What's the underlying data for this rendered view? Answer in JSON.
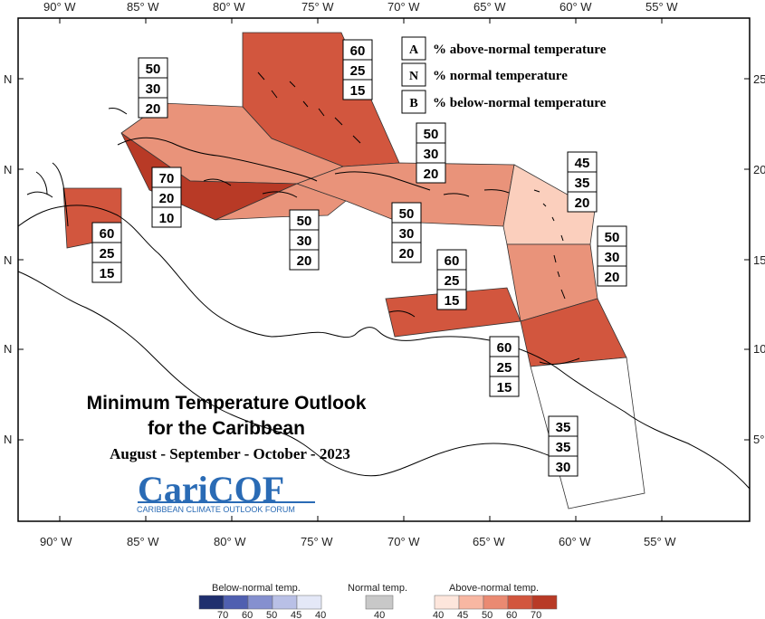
{
  "map": {
    "title_line1": "Minimum Temperature Outlook",
    "title_line2": "for the Caribbean",
    "period": "August - September - October - 2023",
    "lon_labels": [
      "90° W",
      "85° W",
      "80° W",
      "75° W",
      "70° W",
      "65° W",
      "60° W",
      "55° W"
    ],
    "lat_labels_left": [
      "N",
      "N",
      "N",
      "N",
      "N"
    ],
    "lat_labels_right": [
      "25",
      "20",
      "15",
      "10",
      "5°"
    ]
  },
  "key": {
    "a_letter": "A",
    "a_text": "% above-normal temperature",
    "n_letter": "N",
    "n_text": "% normal temperature",
    "b_letter": "B",
    "b_text": "% below-normal temperature"
  },
  "logo": {
    "name": "CariCOF",
    "subtitle": "CARIBBEAN CLIMATE OUTLOOK FORUM"
  },
  "regions": [
    {
      "name": "bahamas-box",
      "a": "60",
      "n": "25",
      "b": "15",
      "fill": "#d2563e"
    },
    {
      "name": "cuba-box",
      "a": "50",
      "n": "30",
      "b": "20",
      "fill": "#e9937a"
    },
    {
      "name": "hispaniola-box",
      "a": "50",
      "n": "30",
      "b": "20",
      "fill": "#e9937a"
    },
    {
      "name": "leeward-box",
      "a": "45",
      "n": "35",
      "b": "20",
      "fill": "#fbcfbd"
    },
    {
      "name": "western-cuba-box",
      "a": "70",
      "n": "20",
      "b": "10",
      "fill": "#b83a26"
    },
    {
      "name": "belize-box",
      "a": "60",
      "n": "25",
      "b": "15",
      "fill": "#d2563e"
    },
    {
      "name": "jamaica-box",
      "a": "50",
      "n": "30",
      "b": "20",
      "fill": "#e9937a"
    },
    {
      "name": "puerto-rico-box",
      "a": "50",
      "n": "30",
      "b": "20",
      "fill": "#e9937a"
    },
    {
      "name": "windward-box",
      "a": "50",
      "n": "30",
      "b": "20",
      "fill": "#e9937a"
    },
    {
      "name": "abc-islands-box",
      "a": "60",
      "n": "25",
      "b": "15",
      "fill": "#d2563e"
    },
    {
      "name": "trinidad-box",
      "a": "60",
      "n": "25",
      "b": "15",
      "fill": "#d2563e"
    },
    {
      "name": "guianas-box",
      "a": "35",
      "n": "35",
      "b": "30",
      "fill": "#ffffff"
    }
  ],
  "legend": {
    "below_title": "Below-normal temp.",
    "normal_title": "Normal temp.",
    "above_title": "Above-normal temp.",
    "below_values": [
      "70",
      "60",
      "50",
      "45",
      "40"
    ],
    "normal_values": [
      "40"
    ],
    "above_values": [
      "40",
      "45",
      "50",
      "60",
      "70"
    ],
    "below_colors": [
      "#1f2f6e",
      "#4f5fb0",
      "#8590cf",
      "#b9c0e6",
      "#e4e8f7"
    ],
    "normal_colors": [
      "#c8c8c8"
    ],
    "above_colors": [
      "#fde6dc",
      "#f8b7a2",
      "#ea8a72",
      "#d2563e",
      "#b83a26"
    ]
  }
}
